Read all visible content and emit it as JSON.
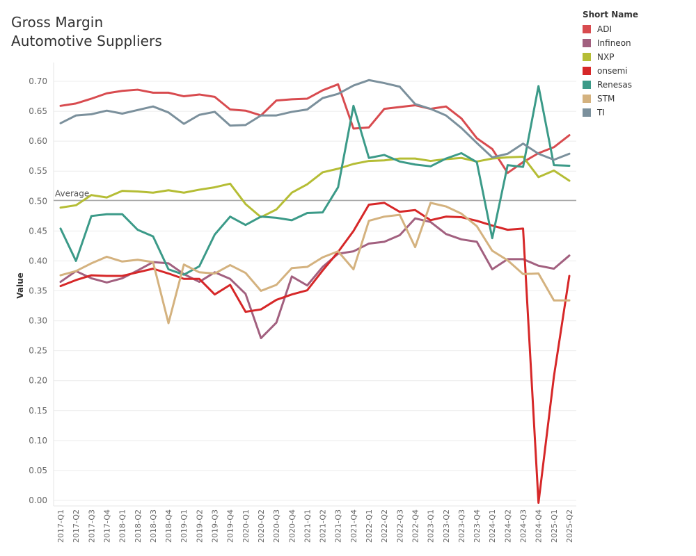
{
  "chart_data": {
    "type": "line",
    "title": "Gross Margin Automotive Suppliers",
    "title_lines": [
      "Gross Margin",
      "Automotive Suppliers"
    ],
    "ylabel": "Value",
    "xlabel": "",
    "ylim": [
      0,
      0.73
    ],
    "yticks": [
      "0.70",
      "0.65",
      "0.60",
      "0.55",
      "0.50",
      "0.45",
      "0.40",
      "0.35",
      "0.30",
      "0.25",
      "0.20",
      "0.15",
      "0.10",
      "0.05",
      "0.00"
    ],
    "average": 0.501,
    "average_label": "Average",
    "legend_title": "Short Name",
    "categories": [
      "2017-Q1",
      "2017-Q2",
      "2017-Q3",
      "2017-Q4",
      "2018-Q1",
      "2018-Q2",
      "2018-Q3",
      "2018-Q4",
      "2019-Q1",
      "2019-Q2",
      "2019-Q3",
      "2019-Q4",
      "2020-Q1",
      "2020-Q2",
      "2020-Q3",
      "2020-Q4",
      "2021-Q1",
      "2021-Q2",
      "2021-Q3",
      "2021-Q4",
      "2022-Q1",
      "2022-Q2",
      "2022-Q3",
      "2022-Q4",
      "2023-Q1",
      "2023-Q2",
      "2023-Q3",
      "2023-Q4",
      "2024-Q1",
      "2024-Q2",
      "2024-Q3",
      "2024-Q4",
      "2025-Q1",
      "2025-Q2"
    ],
    "series": [
      {
        "name": "ADI",
        "color": "#d84b4f",
        "values": [
          0.659,
          0.663,
          0.671,
          0.68,
          0.684,
          0.686,
          0.681,
          0.681,
          0.675,
          0.678,
          0.674,
          0.653,
          0.651,
          0.643,
          0.668,
          0.67,
          0.671,
          0.685,
          0.695,
          0.621,
          0.623,
          0.654,
          0.657,
          0.66,
          0.654,
          0.658,
          0.638,
          0.605,
          0.587,
          0.547,
          0.565,
          0.58,
          0.59,
          0.61
        ]
      },
      {
        "name": "Infineon",
        "color": "#a2607f",
        "values": [
          0.365,
          0.383,
          0.371,
          0.364,
          0.371,
          0.384,
          0.398,
          0.396,
          0.378,
          0.365,
          0.381,
          0.37,
          0.345,
          0.271,
          0.297,
          0.374,
          0.359,
          0.39,
          0.412,
          0.416,
          0.429,
          0.432,
          0.443,
          0.471,
          0.465,
          0.445,
          0.436,
          0.432,
          0.386,
          0.403,
          0.403,
          0.392,
          0.387,
          0.409
        ]
      },
      {
        "name": "NXP",
        "color": "#b5bd35",
        "values": [
          0.489,
          0.493,
          0.51,
          0.506,
          0.517,
          0.516,
          0.514,
          0.518,
          0.514,
          0.519,
          0.523,
          0.529,
          0.495,
          0.473,
          0.486,
          0.514,
          0.528,
          0.548,
          0.554,
          0.562,
          0.567,
          0.568,
          0.571,
          0.571,
          0.567,
          0.57,
          0.572,
          0.566,
          0.571,
          0.573,
          0.574,
          0.54,
          0.551,
          0.534
        ]
      },
      {
        "name": "onsemi",
        "color": "#d62728",
        "values": [
          0.358,
          0.368,
          0.376,
          0.375,
          0.375,
          0.381,
          0.387,
          0.379,
          0.37,
          0.37,
          0.344,
          0.36,
          0.315,
          0.319,
          0.335,
          0.344,
          0.351,
          0.384,
          0.415,
          0.45,
          0.494,
          0.497,
          0.482,
          0.485,
          0.468,
          0.474,
          0.473,
          0.467,
          0.459,
          0.452,
          0.454,
          -0.004,
          0.207,
          0.375
        ]
      },
      {
        "name": "Renesas",
        "color": "#3b9a88",
        "values": [
          0.454,
          0.4,
          0.475,
          0.478,
          0.478,
          0.452,
          0.441,
          0.386,
          0.377,
          0.391,
          0.444,
          0.474,
          0.46,
          0.474,
          0.472,
          0.468,
          0.48,
          0.481,
          0.523,
          0.659,
          0.572,
          0.577,
          0.566,
          0.561,
          0.558,
          0.571,
          0.58,
          0.565,
          0.438,
          0.56,
          0.557,
          0.692,
          0.56,
          0.559
        ]
      },
      {
        "name": "STM",
        "color": "#d4b27f",
        "values": [
          0.376,
          0.383,
          0.396,
          0.407,
          0.399,
          0.402,
          0.398,
          0.296,
          0.394,
          0.381,
          0.379,
          0.393,
          0.38,
          0.35,
          0.36,
          0.388,
          0.39,
          0.406,
          0.416,
          0.386,
          0.467,
          0.474,
          0.477,
          0.423,
          0.497,
          0.491,
          0.479,
          0.458,
          0.417,
          0.401,
          0.378,
          0.379,
          0.334,
          0.334
        ]
      },
      {
        "name": "TI",
        "color": "#7b909c",
        "values": [
          0.63,
          0.643,
          0.645,
          0.651,
          0.646,
          0.652,
          0.658,
          0.648,
          0.629,
          0.644,
          0.649,
          0.626,
          0.627,
          0.643,
          0.643,
          0.649,
          0.653,
          0.672,
          0.679,
          0.693,
          0.702,
          0.697,
          0.691,
          0.662,
          0.654,
          0.643,
          0.622,
          0.597,
          0.573,
          0.579,
          0.596,
          0.579,
          0.569,
          0.579
        ]
      }
    ]
  }
}
